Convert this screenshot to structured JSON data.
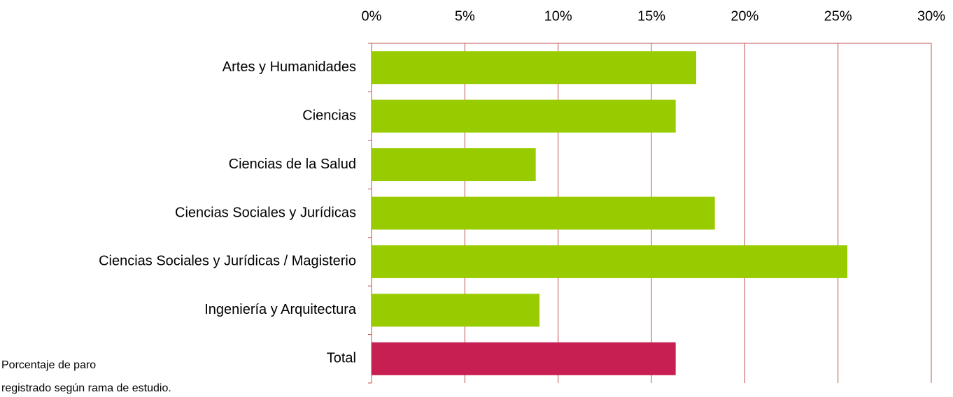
{
  "chart_data": {
    "type": "hbar",
    "categories": [
      "Artes y Humanidades",
      "Ciencias",
      "Ciencias de la Salud",
      "Ciencias Sociales y Jurídicas",
      "Ciencias Sociales y Jurídicas / Magisterio",
      "Ingeniería y Arquitectura",
      "Total"
    ],
    "values": [
      17.4,
      16.3,
      8.8,
      18.4,
      25.5,
      9.0,
      16.3
    ],
    "colors": [
      "#99cc00",
      "#99cc00",
      "#99cc00",
      "#99cc00",
      "#99cc00",
      "#99cc00",
      "#c71f52"
    ],
    "xlim": [
      0,
      30
    ],
    "xticks": [
      {
        "value": 0,
        "label": "0%"
      },
      {
        "value": 5,
        "label": "5%"
      },
      {
        "value": 10,
        "label": "10%"
      },
      {
        "value": 15,
        "label": "15%"
      },
      {
        "value": 20,
        "label": "20%"
      },
      {
        "value": 25,
        "label": "25%"
      },
      {
        "value": 30,
        "label": "30%"
      }
    ],
    "grid": true,
    "grid_color": "#c0504d",
    "caption": [
      "Porcentaje de paro",
      "registrado  según rama de estudio."
    ]
  }
}
